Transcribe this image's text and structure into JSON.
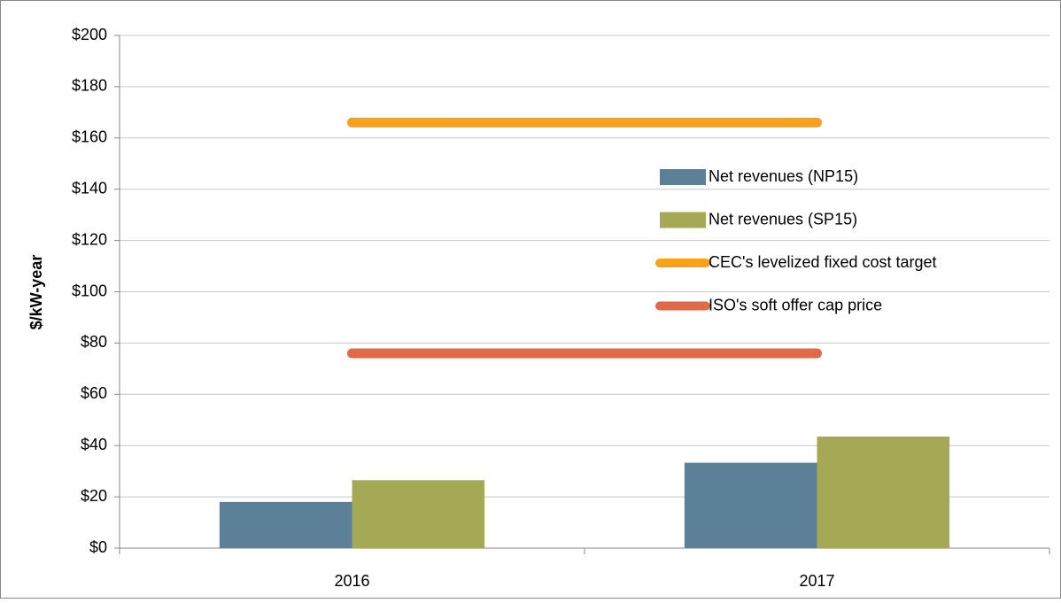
{
  "chart_data": {
    "type": "bar",
    "categories": [
      "2016",
      "2017"
    ],
    "ylabel": "$/kW-year",
    "ylim": [
      0,
      200
    ],
    "yticks": [
      {
        "value": 0,
        "label": "$0"
      },
      {
        "value": 20,
        "label": "$20"
      },
      {
        "value": 40,
        "label": "$40"
      },
      {
        "value": 60,
        "label": "$60"
      },
      {
        "value": 80,
        "label": "$80"
      },
      {
        "value": 100,
        "label": "$100"
      },
      {
        "value": 120,
        "label": "$120"
      },
      {
        "value": 140,
        "label": "$140"
      },
      {
        "value": 160,
        "label": "$160"
      },
      {
        "value": 180,
        "label": "$180"
      },
      {
        "value": 200,
        "label": "$200"
      }
    ],
    "grid": true,
    "series": [
      {
        "name": "Net revenues (NP15)",
        "type": "bar",
        "color": "#5b8098",
        "values": [
          18,
          33.3
        ]
      },
      {
        "name": "Net revenues (SP15)",
        "type": "bar",
        "color": "#a5a855",
        "values": [
          26.5,
          43.5
        ]
      },
      {
        "name": "CEC's levelized fixed cost target",
        "type": "line",
        "color": "#f9a11b",
        "values": [
          166,
          166
        ]
      },
      {
        "name": "ISO's soft offer cap price",
        "type": "line",
        "color": "#e0694a",
        "values": [
          76,
          76
        ]
      }
    ]
  }
}
